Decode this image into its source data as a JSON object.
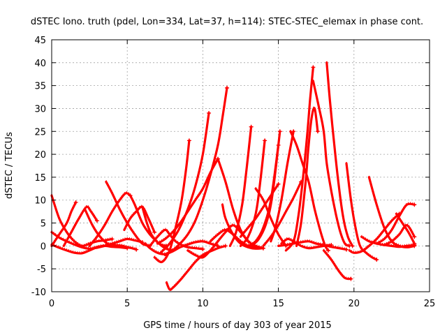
{
  "chart_data": {
    "type": "line",
    "title": "dSTEC Iono. truth (pdel, Lon=334, Lat=37, h=114): STEC-STEC_elemax in phase cont.",
    "xlabel": "GPS time / hours of day 303 of year 2015",
    "ylabel": "dSTEC  / TECUs",
    "xlim": [
      0,
      25
    ],
    "ylim": [
      -10,
      45
    ],
    "xticks": [
      "0",
      "5",
      "10",
      "15",
      "20",
      "25"
    ],
    "yticks": [
      "-10",
      "-5",
      "0",
      "5",
      "10",
      "15",
      "20",
      "25",
      "30",
      "35",
      "40",
      "45"
    ],
    "grid": true,
    "color": "#ff0000",
    "marker": "plus",
    "series": [
      {
        "x": [
          0.0,
          0.5,
          1.0,
          1.5,
          2.0,
          2.5,
          3.0,
          3.5,
          4.0
        ],
        "values": [
          11.0,
          6.0,
          3.0,
          1.0,
          0.0,
          0.5,
          1.0,
          1.2,
          1.5
        ]
      },
      {
        "x": [
          0.0,
          0.5,
          1.0,
          1.5,
          2.0,
          2.5,
          3.0,
          3.5,
          4.0,
          4.5,
          5.0,
          5.5,
          6.0
        ],
        "values": [
          3.0,
          1.8,
          1.0,
          0.3,
          -0.3,
          -0.6,
          -0.4,
          0.0,
          0.5,
          1.0,
          1.5,
          1.2,
          0.8
        ]
      },
      {
        "x": [
          0.0,
          0.5,
          1.0,
          1.5,
          2.0,
          2.5,
          3.0,
          3.5,
          4.0,
          4.5,
          5.0
        ],
        "values": [
          0.3,
          -0.4,
          -1.0,
          -1.5,
          -1.6,
          -1.0,
          -0.3,
          0.0,
          -0.2,
          -0.3,
          -0.5
        ]
      },
      {
        "x": [
          0.0,
          0.5,
          1.0,
          1.3,
          1.6
        ],
        "values": [
          0.0,
          2.5,
          5.0,
          7.5,
          9.5
        ]
      },
      {
        "x": [
          0.8,
          1.3,
          1.8,
          2.3,
          2.6,
          3.0
        ],
        "values": [
          0.0,
          3.0,
          6.0,
          8.5,
          7.5,
          5.5
        ]
      },
      {
        "x": [
          2.2,
          2.7,
          3.2,
          3.7,
          4.2,
          4.7,
          5.0,
          5.3,
          5.6
        ],
        "values": [
          8.0,
          4.5,
          2.0,
          0.5,
          0.2,
          0.0,
          -0.3,
          -0.5,
          -0.8
        ]
      },
      {
        "x": [
          2.5,
          3.0,
          3.5,
          4.0,
          4.5,
          4.9,
          5.2
        ],
        "values": [
          0.0,
          2.0,
          4.5,
          7.5,
          10.0,
          11.5,
          11.0
        ]
      },
      {
        "x": [
          3.6,
          4.0,
          4.5,
          5.0,
          5.5,
          6.0,
          6.5
        ],
        "values": [
          14.0,
          11.5,
          8.0,
          5.0,
          2.5,
          0.5,
          0.0
        ]
      },
      {
        "x": [
          5.2,
          5.5,
          6.0,
          6.5,
          7.0,
          7.5,
          8.0
        ],
        "values": [
          11.0,
          9.0,
          5.0,
          2.5,
          0.8,
          -0.5,
          -1.0
        ]
      },
      {
        "x": [
          4.8,
          5.2,
          5.6,
          6.0,
          6.4,
          6.8
        ],
        "values": [
          3.5,
          6.0,
          7.5,
          8.5,
          6.0,
          3.0
        ]
      },
      {
        "x": [
          6.0,
          6.3,
          6.6,
          7.0,
          7.3,
          7.6
        ],
        "values": [
          8.5,
          5.0,
          2.5,
          0.8,
          0.2,
          0.0
        ]
      },
      {
        "x": [
          6.2,
          6.5,
          7.0,
          7.5,
          8.0,
          8.5,
          9.0,
          9.5,
          10.0,
          10.5,
          11.0
        ],
        "values": [
          0.5,
          -0.5,
          -1.5,
          -1.8,
          -1.2,
          -0.3,
          0.3,
          0.8,
          1.0,
          0.5,
          0.0
        ]
      },
      {
        "x": [
          6.5,
          7.0,
          7.5,
          7.8,
          8.2,
          8.6,
          9.0,
          9.5,
          10.0
        ],
        "values": [
          0.0,
          2.0,
          3.5,
          2.5,
          1.0,
          0.2,
          -0.3,
          -0.5,
          -0.7
        ]
      },
      {
        "x": [
          7.0,
          7.5,
          8.0,
          8.5,
          9.0,
          9.5,
          10.0,
          10.5,
          11.0
        ],
        "values": [
          0.5,
          1.5,
          3.0,
          5.0,
          7.5,
          10.0,
          12.5,
          16.0,
          19.0
        ]
      },
      {
        "x": [
          7.6,
          7.8,
          8.0,
          8.5,
          9.0,
          9.5,
          10.0,
          10.5,
          11.0,
          11.5
        ],
        "values": [
          -8.0,
          -9.5,
          -9.2,
          -7.5,
          -5.5,
          -3.5,
          -2.0,
          -1.2,
          -0.5,
          0.0
        ]
      },
      {
        "x": [
          6.8,
          7.3,
          7.8,
          8.2,
          8.6,
          8.9,
          9.1
        ],
        "values": [
          -2.5,
          -3.5,
          -1.0,
          4.0,
          10.0,
          17.0,
          23.0
        ]
      },
      {
        "x": [
          7.2,
          7.8,
          8.4,
          9.0,
          9.5,
          10.0,
          10.4
        ],
        "values": [
          -1.5,
          0.5,
          3.5,
          8.0,
          13.0,
          20.0,
          29.0
        ]
      },
      {
        "x": [
          7.5,
          8.0,
          8.5,
          9.0,
          9.5,
          10.0,
          10.5,
          11.0,
          11.3,
          11.6
        ],
        "values": [
          -2.0,
          -1.0,
          0.5,
          2.5,
          5.5,
          10.0,
          15.5,
          22.0,
          28.0,
          34.5
        ]
      },
      {
        "x": [
          9.0,
          9.5,
          10.0,
          10.5,
          11.0,
          11.5,
          12.0,
          12.5,
          13.0
        ],
        "values": [
          -1.0,
          -2.0,
          -2.5,
          -1.0,
          1.0,
          3.0,
          4.5,
          3.0,
          1.0
        ]
      },
      {
        "x": [
          11.3,
          11.5,
          12.0,
          12.5,
          13.0,
          13.5,
          14.0
        ],
        "values": [
          9.0,
          6.0,
          2.5,
          0.5,
          -0.3,
          -0.6,
          -0.5
        ]
      },
      {
        "x": [
          10.5,
          11.0,
          11.5,
          12.0,
          12.5,
          13.0,
          13.5
        ],
        "values": [
          1.0,
          2.5,
          3.5,
          2.5,
          1.0,
          0.0,
          -0.3
        ]
      },
      {
        "x": [
          11.8,
          12.2,
          12.6,
          12.9,
          13.2
        ],
        "values": [
          0.0,
          3.0,
          9.0,
          17.0,
          26.0
        ]
      },
      {
        "x": [
          11.0,
          11.5,
          12.0,
          12.5,
          13.0,
          13.5,
          14.0
        ],
        "values": [
          19.0,
          14.0,
          8.0,
          3.5,
          1.0,
          0.0,
          -0.5
        ]
      },
      {
        "x": [
          12.5,
          13.0,
          13.5,
          13.8,
          14.1
        ],
        "values": [
          0.0,
          2.0,
          7.0,
          14.0,
          23.0
        ]
      },
      {
        "x": [
          13.0,
          13.5,
          14.0,
          14.5,
          15.0
        ],
        "values": [
          0.0,
          1.0,
          4.0,
          10.0,
          22.0
        ]
      },
      {
        "x": [
          13.2,
          13.7,
          14.2,
          14.6,
          15.1
        ],
        "values": [
          0.0,
          1.5,
          5.0,
          11.0,
          25.0
        ]
      },
      {
        "x": [
          14.5,
          14.8,
          15.2,
          15.6,
          16.0
        ],
        "values": [
          1.0,
          4.0,
          10.0,
          18.0,
          25.0
        ]
      },
      {
        "x": [
          12.5,
          13.0,
          13.5,
          14.0,
          14.5,
          15.0
        ],
        "values": [
          2.0,
          4.0,
          6.0,
          8.5,
          11.0,
          13.5
        ]
      },
      {
        "x": [
          13.5,
          14.0,
          14.5,
          15.0,
          15.5
        ],
        "values": [
          12.5,
          10.0,
          6.0,
          2.5,
          0.0
        ]
      },
      {
        "x": [
          14.0,
          14.5,
          15.0,
          15.5,
          16.0,
          16.5
        ],
        "values": [
          0.0,
          2.0,
          4.5,
          7.5,
          10.5,
          14.0
        ]
      },
      {
        "x": [
          15.0,
          15.5,
          16.0,
          16.5,
          17.0,
          17.5,
          18.0,
          18.5,
          19.0,
          19.5
        ],
        "values": [
          0.0,
          0.2,
          0.5,
          0.8,
          1.0,
          0.5,
          0.2,
          -0.2,
          -0.5,
          -0.8
        ]
      },
      {
        "x": [
          15.2,
          15.6,
          16.0,
          16.5,
          17.0,
          17.5,
          18.0,
          18.5
        ],
        "values": [
          0.5,
          1.5,
          1.0,
          0.0,
          -0.5,
          -0.3,
          0.0,
          0.2
        ]
      },
      {
        "x": [
          15.5,
          16.0,
          16.3,
          16.6,
          16.9,
          17.1,
          17.3
        ],
        "values": [
          -1.0,
          1.0,
          6.0,
          14.0,
          24.0,
          32.0,
          39.0
        ]
      },
      {
        "x": [
          16.2,
          16.5,
          16.8,
          17.0,
          17.2,
          17.4,
          17.6
        ],
        "values": [
          0.0,
          5.0,
          14.0,
          22.0,
          28.0,
          30.0,
          25.0
        ]
      },
      {
        "x": [
          15.8,
          16.2,
          16.6,
          17.0,
          17.4,
          17.8,
          18.1,
          18.3
        ],
        "values": [
          25.0,
          22.0,
          18.0,
          14.0,
          8.0,
          3.0,
          0.0,
          -1.0
        ]
      },
      {
        "x": [
          17.3,
          17.7,
          18.0,
          18.2,
          18.5,
          18.8,
          19.1,
          19.4,
          19.7
        ],
        "values": [
          36.0,
          30.0,
          25.0,
          18.0,
          12.0,
          7.0,
          3.0,
          0.5,
          0.0
        ]
      },
      {
        "x": [
          18.2,
          18.4,
          18.7,
          19.0,
          19.3,
          19.6,
          19.9
        ],
        "values": [
          40.0,
          32.0,
          22.0,
          13.0,
          6.0,
          2.0,
          0.0
        ]
      },
      {
        "x": [
          18.0,
          18.5,
          19.0,
          19.4,
          19.8
        ],
        "values": [
          -1.0,
          -3.0,
          -5.5,
          -7.0,
          -7.2
        ]
      },
      {
        "x": [
          19.5,
          19.8,
          20.1,
          20.4,
          20.8,
          21.2,
          21.5
        ],
        "values": [
          18.0,
          10.0,
          4.0,
          0.0,
          -1.5,
          -2.5,
          -3.0
        ]
      },
      {
        "x": [
          19.7,
          20.0,
          20.5,
          21.0,
          21.5,
          22.0,
          22.5,
          23.0
        ],
        "values": [
          -1.0,
          -1.5,
          -1.2,
          0.0,
          1.5,
          3.5,
          5.5,
          7.0
        ]
      },
      {
        "x": [
          21.0,
          21.5,
          22.0,
          22.5,
          23.0,
          23.5,
          24.0
        ],
        "values": [
          15.0,
          9.0,
          4.0,
          1.0,
          0.0,
          -0.3,
          0.0
        ]
      },
      {
        "x": [
          21.5,
          22.0,
          22.5,
          23.0,
          23.5,
          24.0
        ],
        "values": [
          0.5,
          1.5,
          3.5,
          6.5,
          9.0,
          9.0
        ]
      },
      {
        "x": [
          22.8,
          23.2,
          23.6,
          24.0
        ],
        "values": [
          7.0,
          5.0,
          3.0,
          0.5
        ]
      },
      {
        "x": [
          20.5,
          21.0,
          21.5,
          22.0,
          22.5,
          23.0,
          23.5,
          24.0
        ],
        "values": [
          2.0,
          1.0,
          0.5,
          0.2,
          0.0,
          -0.2,
          0.0,
          0.2
        ]
      },
      {
        "x": [
          22.0,
          22.5,
          23.0,
          23.5,
          24.0
        ],
        "values": [
          0.2,
          1.0,
          2.5,
          4.5,
          2.0
        ]
      }
    ]
  }
}
